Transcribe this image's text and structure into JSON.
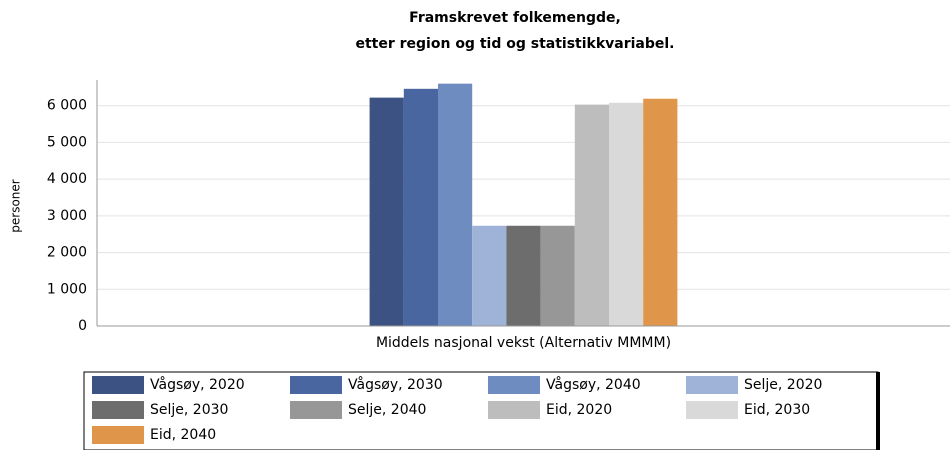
{
  "chart_data": {
    "type": "bar",
    "title": [
      "Framskrevet folkemengde,",
      "etter region og tid og statistikkvariabel."
    ],
    "ylabel": "personer",
    "categories": [
      "Middels nasjonal vekst (Alternativ MMMM)"
    ],
    "series": [
      {
        "name": "Vågsøy, 2020",
        "color": "#3b5282",
        "values": [
          6220
        ]
      },
      {
        "name": "Vågsøy, 2030",
        "color": "#4a66a0",
        "values": [
          6460
        ]
      },
      {
        "name": "Vågsøy, 2040",
        "color": "#6f8cc0",
        "values": [
          6600
        ]
      },
      {
        "name": "Selje, 2020",
        "color": "#9fb3d8",
        "values": [
          2730
        ]
      },
      {
        "name": "Selje, 2030",
        "color": "#6d6d6d",
        "values": [
          2730
        ]
      },
      {
        "name": "Selje, 2040",
        "color": "#979797",
        "values": [
          2730
        ]
      },
      {
        "name": "Eid, 2020",
        "color": "#bdbdbd",
        "values": [
          6030
        ]
      },
      {
        "name": "Eid, 2030",
        "color": "#d9d9d9",
        "values": [
          6080
        ]
      },
      {
        "name": "Eid, 2040",
        "color": "#e0964a",
        "values": [
          6190
        ]
      }
    ],
    "ylim": [
      0,
      6700
    ],
    "yticks": [
      0,
      {
        "value": 1000,
        "label": "1 000"
      },
      {
        "value": 2000,
        "label": "2 000"
      },
      {
        "value": 3000,
        "label": "3 000"
      },
      {
        "value": 4000,
        "label": "4 000"
      },
      {
        "value": 5000,
        "label": "5 000"
      },
      {
        "value": 6000,
        "label": "6 000"
      }
    ],
    "grid": true
  }
}
